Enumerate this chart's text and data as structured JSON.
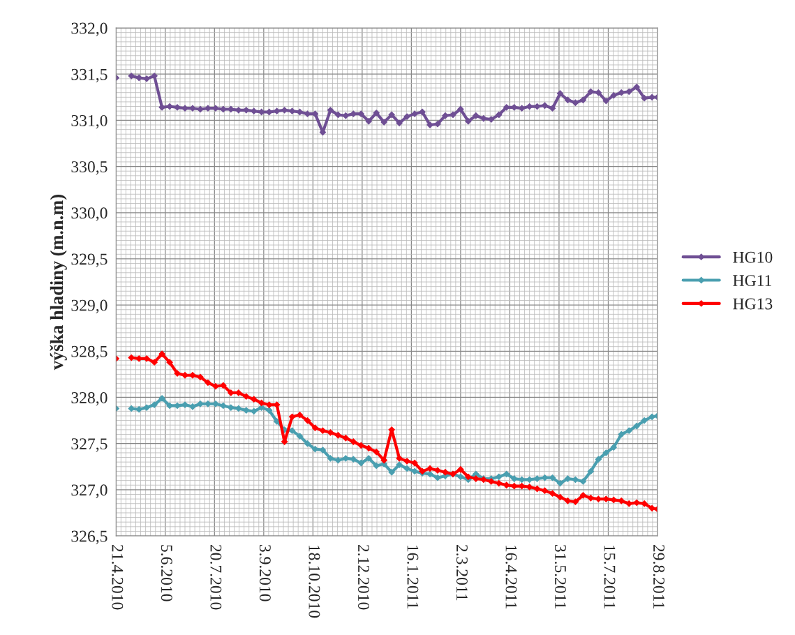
{
  "chart_data": {
    "type": "line",
    "ylabel": "výška hladiny (m.n.m)",
    "x": [
      "2010-04-21",
      "2010-04-28",
      "2010-05-05",
      "2010-05-12",
      "2010-05-19",
      "2010-05-26",
      "2010-06-02",
      "2010-06-09",
      "2010-06-16",
      "2010-06-23",
      "2010-06-30",
      "2010-07-07",
      "2010-07-14",
      "2010-07-21",
      "2010-07-28",
      "2010-08-04",
      "2010-08-11",
      "2010-08-18",
      "2010-08-25",
      "2010-09-01",
      "2010-09-08",
      "2010-09-15",
      "2010-09-22",
      "2010-09-29",
      "2010-10-06",
      "2010-10-13",
      "2010-10-20",
      "2010-10-27",
      "2010-11-03",
      "2010-11-10",
      "2010-11-17",
      "2010-11-24",
      "2010-12-01",
      "2010-12-08",
      "2010-12-15",
      "2010-12-22",
      "2010-12-29",
      "2011-01-05",
      "2011-01-12",
      "2011-01-19",
      "2011-01-26",
      "2011-02-02",
      "2011-02-09",
      "2011-02-16",
      "2011-02-23",
      "2011-03-02",
      "2011-03-09",
      "2011-03-16",
      "2011-03-23",
      "2011-03-30",
      "2011-04-06",
      "2011-04-13",
      "2011-04-20",
      "2011-04-27",
      "2011-05-04",
      "2011-05-11",
      "2011-05-18",
      "2011-05-25",
      "2011-06-01",
      "2011-06-08",
      "2011-06-15",
      "2011-06-22",
      "2011-06-29",
      "2011-07-06",
      "2011-07-13",
      "2011-07-20",
      "2011-07-27",
      "2011-08-03",
      "2011-08-10",
      "2011-08-17",
      "2011-08-24",
      "2011-08-29"
    ],
    "series": [
      {
        "name": "HG10",
        "color": "#6f4f94",
        "values": [
          331.46,
          null,
          331.48,
          331.46,
          331.45,
          331.48,
          331.14,
          331.15,
          331.14,
          331.13,
          331.13,
          331.12,
          331.13,
          331.13,
          331.12,
          331.12,
          331.11,
          331.11,
          331.1,
          331.09,
          331.09,
          331.1,
          331.11,
          331.1,
          331.09,
          331.07,
          331.07,
          330.87,
          331.11,
          331.06,
          331.05,
          331.07,
          331.07,
          330.99,
          331.08,
          330.98,
          331.06,
          330.97,
          331.04,
          331.07,
          331.09,
          330.95,
          330.96,
          331.05,
          331.06,
          331.12,
          330.99,
          331.05,
          331.02,
          331.01,
          331.06,
          331.14,
          331.14,
          331.13,
          331.15,
          331.15,
          331.16,
          331.13,
          331.29,
          331.22,
          331.19,
          331.22,
          331.31,
          331.3,
          331.21,
          331.27,
          331.3,
          331.31,
          331.36,
          331.24,
          331.25,
          331.25
        ]
      },
      {
        "name": "HG11",
        "color": "#4a9fb0",
        "values": [
          327.88,
          null,
          327.88,
          327.87,
          327.89,
          327.92,
          327.99,
          327.91,
          327.91,
          327.92,
          327.9,
          327.93,
          327.93,
          327.93,
          327.91,
          327.89,
          327.88,
          327.86,
          327.85,
          327.89,
          327.86,
          327.74,
          327.65,
          327.64,
          327.58,
          327.5,
          327.44,
          327.43,
          327.34,
          327.32,
          327.34,
          327.33,
          327.29,
          327.34,
          327.26,
          327.28,
          327.19,
          327.27,
          327.23,
          327.2,
          327.18,
          327.17,
          327.13,
          327.15,
          327.17,
          327.14,
          327.11,
          327.17,
          327.12,
          327.12,
          327.14,
          327.17,
          327.12,
          327.11,
          327.11,
          327.12,
          327.13,
          327.13,
          327.07,
          327.12,
          327.11,
          327.09,
          327.2,
          327.33,
          327.4,
          327.46,
          327.6,
          327.64,
          327.69,
          327.75,
          327.79,
          327.8
        ]
      },
      {
        "name": "HG13",
        "color": "#ff0000",
        "values": [
          328.42,
          null,
          328.43,
          328.42,
          328.42,
          328.38,
          328.47,
          328.38,
          328.26,
          328.24,
          328.24,
          328.22,
          328.16,
          328.12,
          328.13,
          328.05,
          328.05,
          328.01,
          327.98,
          327.94,
          327.92,
          327.92,
          327.52,
          327.79,
          327.81,
          327.75,
          327.67,
          327.64,
          327.62,
          327.59,
          327.56,
          327.52,
          327.48,
          327.45,
          327.41,
          327.32,
          327.65,
          327.34,
          327.31,
          327.29,
          327.2,
          327.23,
          327.21,
          327.19,
          327.17,
          327.22,
          327.14,
          327.12,
          327.11,
          327.09,
          327.07,
          327.05,
          327.04,
          327.04,
          327.03,
          327.01,
          326.99,
          326.96,
          326.92,
          326.88,
          326.87,
          326.94,
          326.91,
          326.9,
          326.9,
          326.89,
          326.88,
          326.85,
          326.86,
          326.85,
          326.8,
          326.79
        ]
      }
    ],
    "xlim": [
      "2010-04-21",
      "2011-08-29"
    ],
    "xticks": [
      {
        "value": "2010-04-21",
        "label": "21.4.2010"
      },
      {
        "value": "2010-06-05",
        "label": "5.6.2010"
      },
      {
        "value": "2010-07-20",
        "label": "20.7.2010"
      },
      {
        "value": "2010-09-03",
        "label": "3.9.2010"
      },
      {
        "value": "2010-10-18",
        "label": "18.10.2010"
      },
      {
        "value": "2010-12-02",
        "label": "2.12.2010"
      },
      {
        "value": "2011-01-16",
        "label": "16.1.2011"
      },
      {
        "value": "2011-03-02",
        "label": "2.3.2011"
      },
      {
        "value": "2011-04-16",
        "label": "16.4.2011"
      },
      {
        "value": "2011-05-31",
        "label": "31.5.2011"
      },
      {
        "value": "2011-07-15",
        "label": "15.7.2011"
      },
      {
        "value": "2011-08-29",
        "label": "29.8.2011"
      }
    ],
    "ylim": [
      326.5,
      332.0
    ],
    "yticks": [
      {
        "value": 326.5,
        "label": "326,5"
      },
      {
        "value": 327.0,
        "label": "327,0"
      },
      {
        "value": 327.5,
        "label": "327,5"
      },
      {
        "value": 328.0,
        "label": "328,0"
      },
      {
        "value": 328.5,
        "label": "328,5"
      },
      {
        "value": 329.0,
        "label": "329,0"
      },
      {
        "value": 329.5,
        "label": "329,5"
      },
      {
        "value": 330.0,
        "label": "330,0"
      },
      {
        "value": 330.5,
        "label": "330,5"
      },
      {
        "value": 331.0,
        "label": "331,0"
      },
      {
        "value": 331.5,
        "label": "331,5"
      },
      {
        "value": 332.0,
        "label": "332,0"
      }
    ],
    "grid": true,
    "legend": "right",
    "marker": "diamond",
    "line_style": "solid"
  }
}
